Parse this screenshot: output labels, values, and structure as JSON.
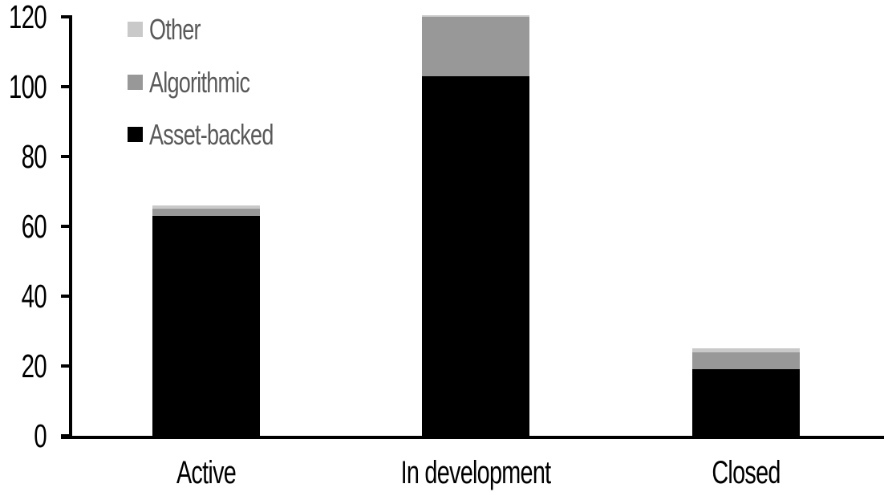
{
  "chart_data": {
    "type": "bar",
    "stacked": true,
    "categories": [
      "Active",
      "In development",
      "Closed"
    ],
    "series": [
      {
        "name": "Asset-backed",
        "color": "#000000",
        "values": [
          63,
          103,
          19
        ]
      },
      {
        "name": "Algorithmic",
        "color": "#989898",
        "values": [
          2,
          17,
          5
        ]
      },
      {
        "name": "Other",
        "color": "#c9c9c9",
        "values": [
          1,
          0.5,
          1
        ]
      }
    ],
    "y_axis": {
      "min": 0,
      "max": 120,
      "tick_step": 20,
      "tick_labels": [
        "0",
        "20",
        "40",
        "60",
        "80",
        "100",
        "120"
      ]
    },
    "x_axis": {
      "labels": [
        "Active",
        "In development",
        "Closed"
      ]
    },
    "legend": {
      "position": "top-left",
      "text_color": "#595959",
      "items": [
        {
          "label": "Other",
          "color": "#c9c9c9"
        },
        {
          "label": "Algorithmic",
          "color": "#989898"
        },
        {
          "label": "Asset-backed",
          "color": "#000000"
        }
      ]
    },
    "grid": false,
    "axis_color": "#000000",
    "background": "#ffffff"
  }
}
